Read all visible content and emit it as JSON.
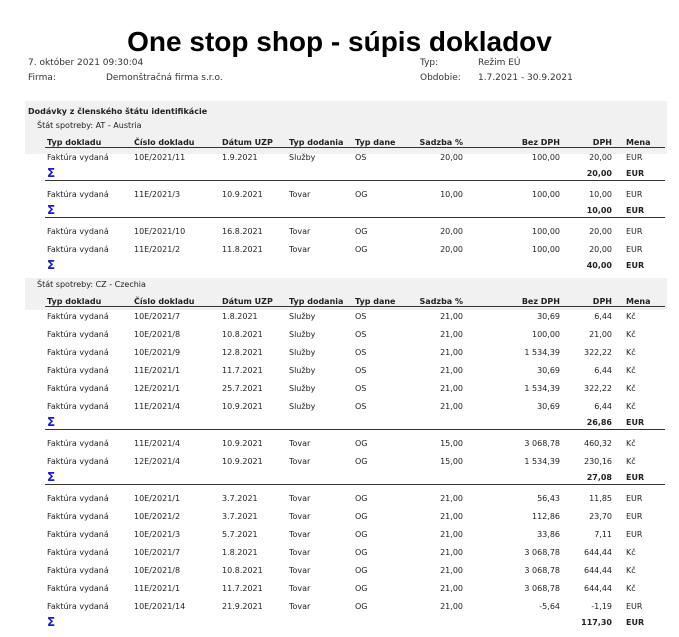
{
  "title": "One stop shop - súpis dokladov",
  "header": {
    "datetime": "7. október 2021  09:30:04",
    "firma_label": "Firma:",
    "firma_value": "Demonštračná firma s.r.o.",
    "typ_label": "Typ:",
    "typ_value": "Režim EÚ",
    "obdobie_label": "Obdobie:",
    "obdobie_value": "1.7.2021 - 30.9.2021"
  },
  "section_title": "Dodávky z členského štátu identifikácie",
  "columns": [
    "Typ dokladu",
    "Číslo dokladu",
    "Dátum UZP",
    "Typ dodania",
    "Typ dane",
    "Sadzba %",
    "Bez DPH",
    "DPH",
    "Mena"
  ],
  "sum_symbol": "Σ",
  "states": [
    {
      "label": "Štát spotreby: AT - Austria",
      "groups": [
        {
          "rows": [
            [
              "Faktúra vydaná",
              "10E/2021/11",
              "1.9.2021",
              "Služby",
              "OS",
              "20,00",
              "100,00",
              "20,00",
              "EUR"
            ]
          ],
          "total": "20,00",
          "currency": "EUR"
        },
        {
          "rows": [
            [
              "Faktúra vydaná",
              "11E/2021/3",
              "10.9.2021",
              "Tovar",
              "OG",
              "10,00",
              "100,00",
              "10,00",
              "EUR"
            ]
          ],
          "total": "10,00",
          "currency": "EUR"
        },
        {
          "rows": [
            [
              "Faktúra vydaná",
              "10E/2021/10",
              "16.8.2021",
              "Tovar",
              "OG",
              "20,00",
              "100,00",
              "20,00",
              "EUR"
            ],
            [
              "Faktúra vydaná",
              "11E/2021/2",
              "11.8.2021",
              "Tovar",
              "OG",
              "20,00",
              "100,00",
              "20,00",
              "EUR"
            ]
          ],
          "total": "40,00",
          "currency": "EUR"
        }
      ]
    },
    {
      "label": "Štát spotreby: CZ - Czechia",
      "groups": [
        {
          "rows": [
            [
              "Faktúra vydaná",
              "10E/2021/7",
              "1.8.2021",
              "Služby",
              "OS",
              "21,00",
              "30,69",
              "6,44",
              "Kč"
            ],
            [
              "Faktúra vydaná",
              "10E/2021/8",
              "10.8.2021",
              "Služby",
              "OS",
              "21,00",
              "100,00",
              "21,00",
              "Kč"
            ],
            [
              "Faktúra vydaná",
              "10E/2021/9",
              "12.8.2021",
              "Služby",
              "OS",
              "21,00",
              "1 534,39",
              "322,22",
              "Kč"
            ],
            [
              "Faktúra vydaná",
              "11E/2021/1",
              "11.7.2021",
              "Služby",
              "OS",
              "21,00",
              "30,69",
              "6,44",
              "Kč"
            ],
            [
              "Faktúra vydaná",
              "12E/2021/1",
              "25.7.2021",
              "Služby",
              "OS",
              "21,00",
              "1 534,39",
              "322,22",
              "Kč"
            ],
            [
              "Faktúra vydaná",
              "11E/2021/4",
              "10.9.2021",
              "Služby",
              "OS",
              "21,00",
              "30,69",
              "6,44",
              "Kč"
            ]
          ],
          "total": "26,86",
          "currency": "EUR"
        },
        {
          "rows": [
            [
              "Faktúra vydaná",
              "11E/2021/4",
              "10.9.2021",
              "Tovar",
              "OG",
              "15,00",
              "3 068,78",
              "460,32",
              "Kč"
            ],
            [
              "Faktúra vydaná",
              "12E/2021/4",
              "10.9.2021",
              "Tovar",
              "OG",
              "15,00",
              "1 534,39",
              "230,16",
              "Kč"
            ]
          ],
          "total": "27,08",
          "currency": "EUR"
        },
        {
          "rows": [
            [
              "Faktúra vydaná",
              "10E/2021/1",
              "3.7.2021",
              "Tovar",
              "OG",
              "21,00",
              "56,43",
              "11,85",
              "EUR"
            ],
            [
              "Faktúra vydaná",
              "10E/2021/2",
              "3.7.2021",
              "Tovar",
              "OG",
              "21,00",
              "112,86",
              "23,70",
              "EUR"
            ],
            [
              "Faktúra vydaná",
              "10E/2021/3",
              "5.7.2021",
              "Tovar",
              "OG",
              "21,00",
              "33,86",
              "7,11",
              "EUR"
            ],
            [
              "Faktúra vydaná",
              "10E/2021/7",
              "1.8.2021",
              "Tovar",
              "OG",
              "21,00",
              "3 068,78",
              "644,44",
              "Kč"
            ],
            [
              "Faktúra vydaná",
              "10E/2021/8",
              "10.8.2021",
              "Tovar",
              "OG",
              "21,00",
              "3 068,78",
              "644,44",
              "Kč"
            ],
            [
              "Faktúra vydaná",
              "11E/2021/1",
              "11.7.2021",
              "Tovar",
              "OG",
              "21,00",
              "3 068,78",
              "644,44",
              "Kč"
            ],
            [
              "Faktúra vydaná",
              "10E/2021/14",
              "21.9.2021",
              "Tovar",
              "OG",
              "21,00",
              "-5,64",
              "-1,19",
              "EUR"
            ]
          ],
          "total": "117,30",
          "currency": "EUR"
        }
      ]
    }
  ]
}
